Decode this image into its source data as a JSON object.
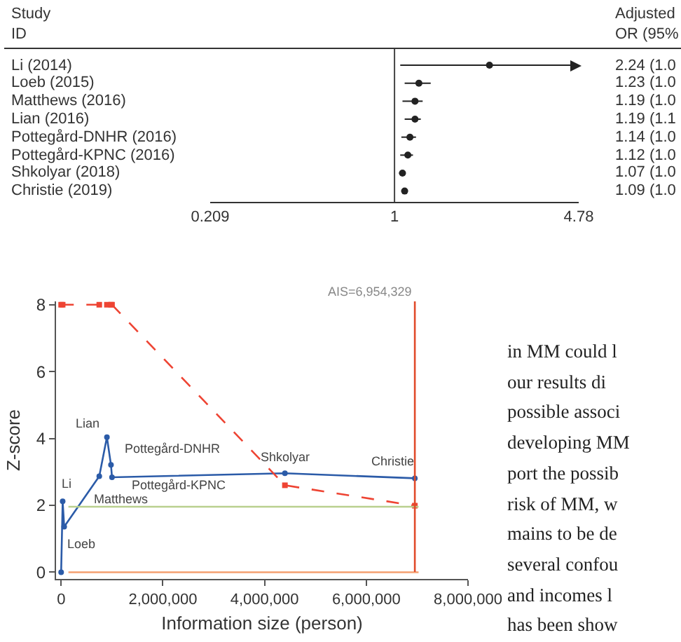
{
  "chart_data": [
    {
      "type": "scatter",
      "orientation": "horizontal",
      "annotations": [
        "Study\nID",
        "Adjusted\nOR (95%"
      ],
      "categories": [
        "Li (2014)",
        "Loeb (2015)",
        "Matthews (2016)",
        "Lian (2016)",
        "Pottegård-DNHR (2016)",
        "Pottegård-KPNC (2016)",
        "Shkolyar (2018)",
        "Christie (2019)"
      ],
      "values": [
        2.24,
        1.23,
        1.19,
        1.19,
        1.14,
        1.12,
        1.07,
        1.09
      ],
      "errors": [
        [
          1.05,
          4.78
        ],
        [
          1.09,
          1.36
        ],
        [
          1.07,
          1.27
        ],
        [
          1.09,
          1.25
        ],
        [
          1.06,
          1.2
        ],
        [
          1.05,
          1.17
        ],
        [
          1.04,
          1.1
        ],
        [
          1.06,
          1.12
        ]
      ],
      "value_labels": [
        "2.24 (1.0",
        "1.23 (1.0",
        "1.19 (1.0",
        "1.19 (1.1",
        "1.14 (1.0",
        "1.12 (1.0",
        "1.07 (1.0",
        "1.09 (1.0"
      ],
      "color": "#222222",
      "marker": "circle",
      "log": "x",
      "xlim": [
        0.209,
        4.78
      ],
      "xticks": [
        0.209,
        1,
        4.78
      ],
      "ref_lines": [
        {
          "axis": "x",
          "value": 1,
          "color": "#444444"
        }
      ]
    },
    {
      "type": "line",
      "xlabel": "Information size (person)",
      "ylabel": "Z-score",
      "series": [
        {
          "color": "#2b5ba8",
          "line_style": "solid",
          "marker": "circle",
          "x": [
            0,
            30000,
            60000,
            750000,
            900000,
            980000,
            1000000,
            4400000,
            6954329
          ],
          "values": [
            0,
            2.12,
            1.36,
            2.87,
            4.04,
            3.21,
            2.84,
            2.96,
            2.81
          ]
        },
        {
          "color": "#ee4433",
          "line_style": "dashed",
          "marker": "square",
          "x": [
            0,
            30000,
            750000,
            900000,
            980000,
            1000000,
            4400000,
            6954329
          ],
          "values": [
            8,
            8,
            8,
            8,
            8,
            8,
            2.6,
            1.99
          ]
        }
      ],
      "xlim": [
        -100000,
        8000000
      ],
      "xticks": [
        {
          "value": 0,
          "label": "0"
        },
        {
          "value": 2000000,
          "label": "2,000,000"
        },
        {
          "value": 4000000,
          "label": "4,000,000"
        },
        {
          "value": 6000000,
          "label": "6,000,000"
        },
        {
          "value": 8000000,
          "label": "8,000,000"
        }
      ],
      "ylim": [
        -0.2,
        8.1
      ],
      "yticks": [
        0,
        2,
        4,
        6,
        8
      ],
      "grid": false,
      "ref_lines": [
        {
          "axis": "y",
          "value": 0,
          "color": "#f5a070"
        },
        {
          "axis": "y",
          "value": 1.96,
          "color": "#b9d08e"
        },
        {
          "axis": "x",
          "value": 6954329,
          "label": "AIS=6,954,329",
          "color": "#e04a2a"
        }
      ],
      "annotations": [
        {
          "text": "Li",
          "x": 30000,
          "y": 2.12
        },
        {
          "text": "Loeb",
          "x": 60000,
          "y": 1.36
        },
        {
          "text": "Matthews",
          "x": 750000,
          "y": 2.87
        },
        {
          "text": "Lian",
          "x": 900000,
          "y": 4.04
        },
        {
          "text": "Pottegård-DNHR",
          "x": 980000,
          "y": 3.21
        },
        {
          "text": "Pottegård-KPNC",
          "x": 1000000,
          "y": 2.84
        },
        {
          "text": "Shkolyar",
          "x": 4400000,
          "y": 2.96
        },
        {
          "text": "Christie",
          "x": 6954329,
          "y": 2.81
        },
        "in MM could l\nour results di\npossible associ\ndeveloping MM\nport the possib\nrisk of MM, w\nmains to be de\nseveral confou\nand incomes l\nhas been show\nsure could be\ntion between"
      ]
    }
  ]
}
